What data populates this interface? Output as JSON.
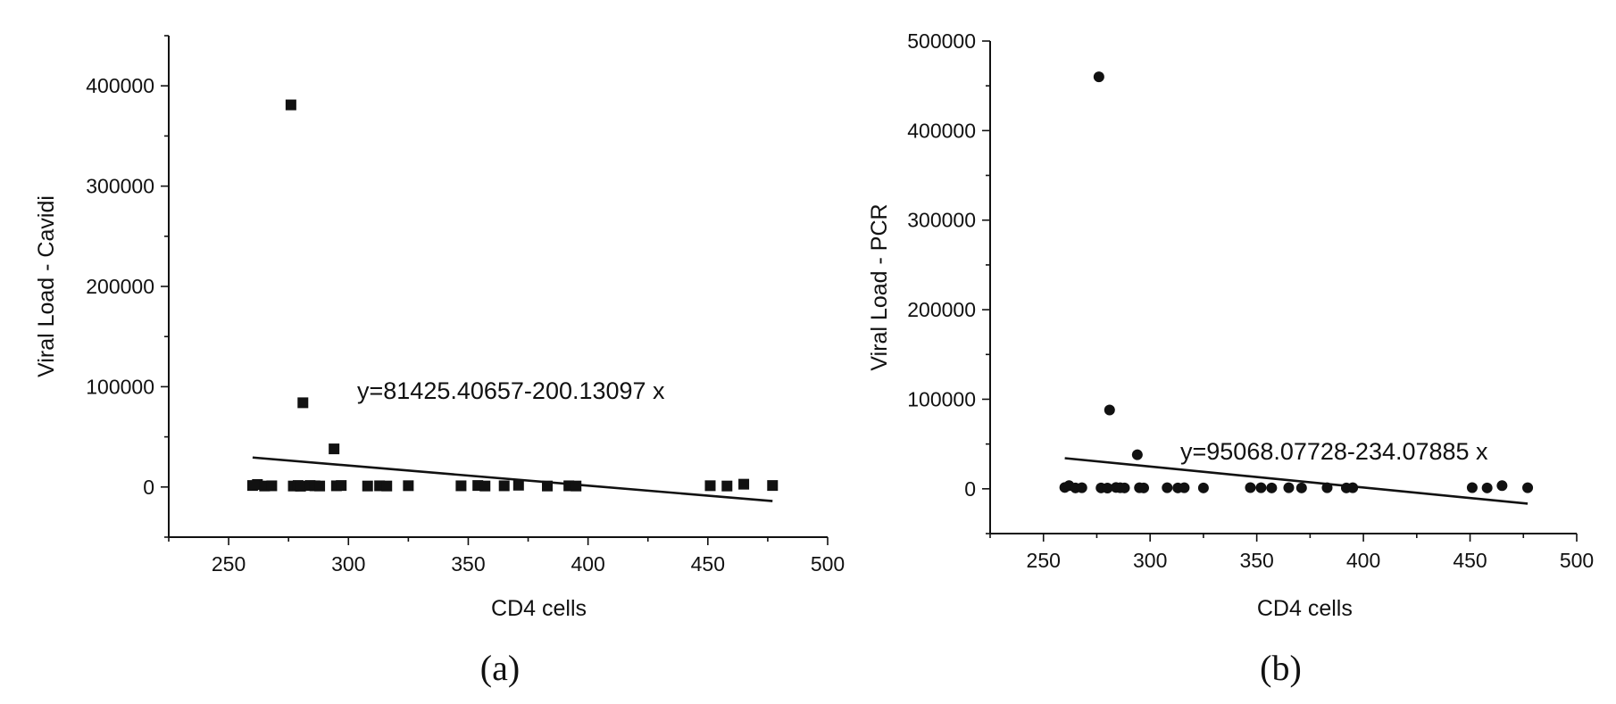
{
  "chart_data": [
    {
      "type": "scatter",
      "panel_label": "(a)",
      "xlabel": "CD4 cells",
      "ylabel": "Viral Load - Cavidi",
      "xlim": [
        225,
        500
      ],
      "ylim": [
        -50000,
        450000
      ],
      "x_ticks": [
        250,
        300,
        350,
        400,
        450,
        500
      ],
      "y_ticks": [
        0,
        100000,
        200000,
        300000,
        400000
      ],
      "marker": "square",
      "marker_color": "#111111",
      "points": [
        [
          260,
          1500
        ],
        [
          262,
          2500
        ],
        [
          265,
          1000
        ],
        [
          268,
          1200
        ],
        [
          276,
          381000
        ],
        [
          277,
          1000
        ],
        [
          279,
          1500
        ],
        [
          280,
          800
        ],
        [
          281,
          84000
        ],
        [
          284,
          1500
        ],
        [
          286,
          1200
        ],
        [
          288,
          1000
        ],
        [
          294,
          38000
        ],
        [
          295,
          1200
        ],
        [
          297,
          1500
        ],
        [
          308,
          1000
        ],
        [
          313,
          1200
        ],
        [
          316,
          1000
        ],
        [
          325,
          1300
        ],
        [
          347,
          1200
        ],
        [
          354,
          1500
        ],
        [
          357,
          1000
        ],
        [
          365,
          1200
        ],
        [
          371,
          1800
        ],
        [
          383,
          1000
        ],
        [
          392,
          1200
        ],
        [
          395,
          1000
        ],
        [
          451,
          1300
        ],
        [
          458,
          1000
        ],
        [
          465,
          2800
        ],
        [
          477,
          1500
        ]
      ],
      "regression": {
        "equation": "y=81425.40657-200.13097 x",
        "intercept": 81425.40657,
        "slope": -200.13097,
        "x_range": [
          260,
          477
        ]
      }
    },
    {
      "type": "scatter",
      "panel_label": "(b)",
      "xlabel": "CD4 cells",
      "ylabel": "Viral Load - PCR",
      "xlim": [
        225,
        500
      ],
      "ylim": [
        -50000,
        500000
      ],
      "x_ticks": [
        250,
        300,
        350,
        400,
        450,
        500
      ],
      "y_ticks": [
        0,
        100000,
        200000,
        300000,
        400000,
        500000
      ],
      "marker": "circle",
      "marker_color": "#111111",
      "points": [
        [
          260,
          1500
        ],
        [
          262,
          3500
        ],
        [
          265,
          1000
        ],
        [
          268,
          1200
        ],
        [
          276,
          460000
        ],
        [
          277,
          1000
        ],
        [
          280,
          800
        ],
        [
          281,
          88000
        ],
        [
          284,
          1500
        ],
        [
          286,
          1200
        ],
        [
          288,
          1000
        ],
        [
          294,
          38000
        ],
        [
          295,
          1200
        ],
        [
          297,
          1000
        ],
        [
          308,
          1200
        ],
        [
          313,
          1000
        ],
        [
          316,
          1200
        ],
        [
          325,
          1000
        ],
        [
          347,
          1300
        ],
        [
          352,
          1200
        ],
        [
          357,
          1000
        ],
        [
          365,
          1200
        ],
        [
          371,
          1000
        ],
        [
          383,
          1200
        ],
        [
          392,
          1000
        ],
        [
          395,
          1200
        ],
        [
          451,
          1300
        ],
        [
          458,
          1000
        ],
        [
          465,
          3500
        ],
        [
          477,
          1200
        ]
      ],
      "regression": {
        "equation": "y=95068.07728-234.07885 x",
        "intercept": 95068.07728,
        "slope": -234.07885,
        "x_range": [
          260,
          477
        ]
      }
    }
  ]
}
